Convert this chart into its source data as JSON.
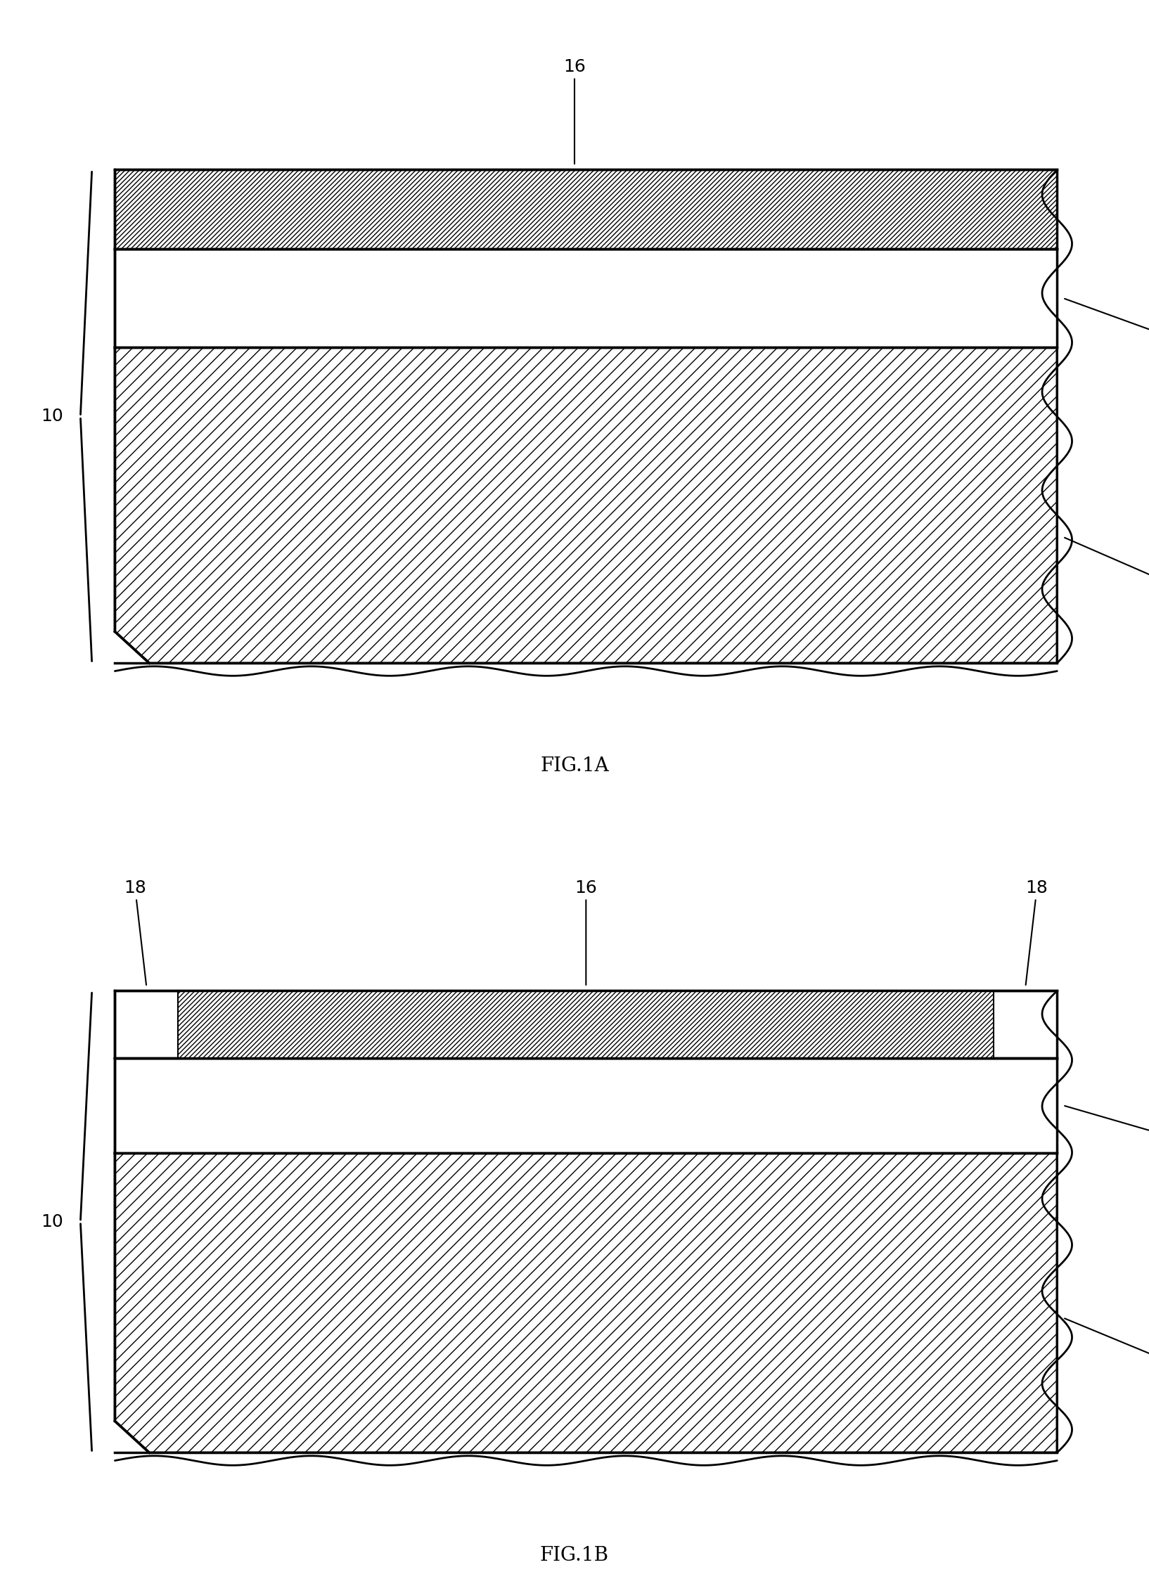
{
  "fig_width": 16.34,
  "fig_height": 22.46,
  "bg_color": "#ffffff",
  "fig1a_label": "FIG.1A",
  "fig1b_label": "FIG.1B",
  "label_fontsize": 20,
  "annot_fontsize": 18,
  "lw_thick": 2.5,
  "lw_medium": 2.0,
  "lw_thin": 1.5
}
